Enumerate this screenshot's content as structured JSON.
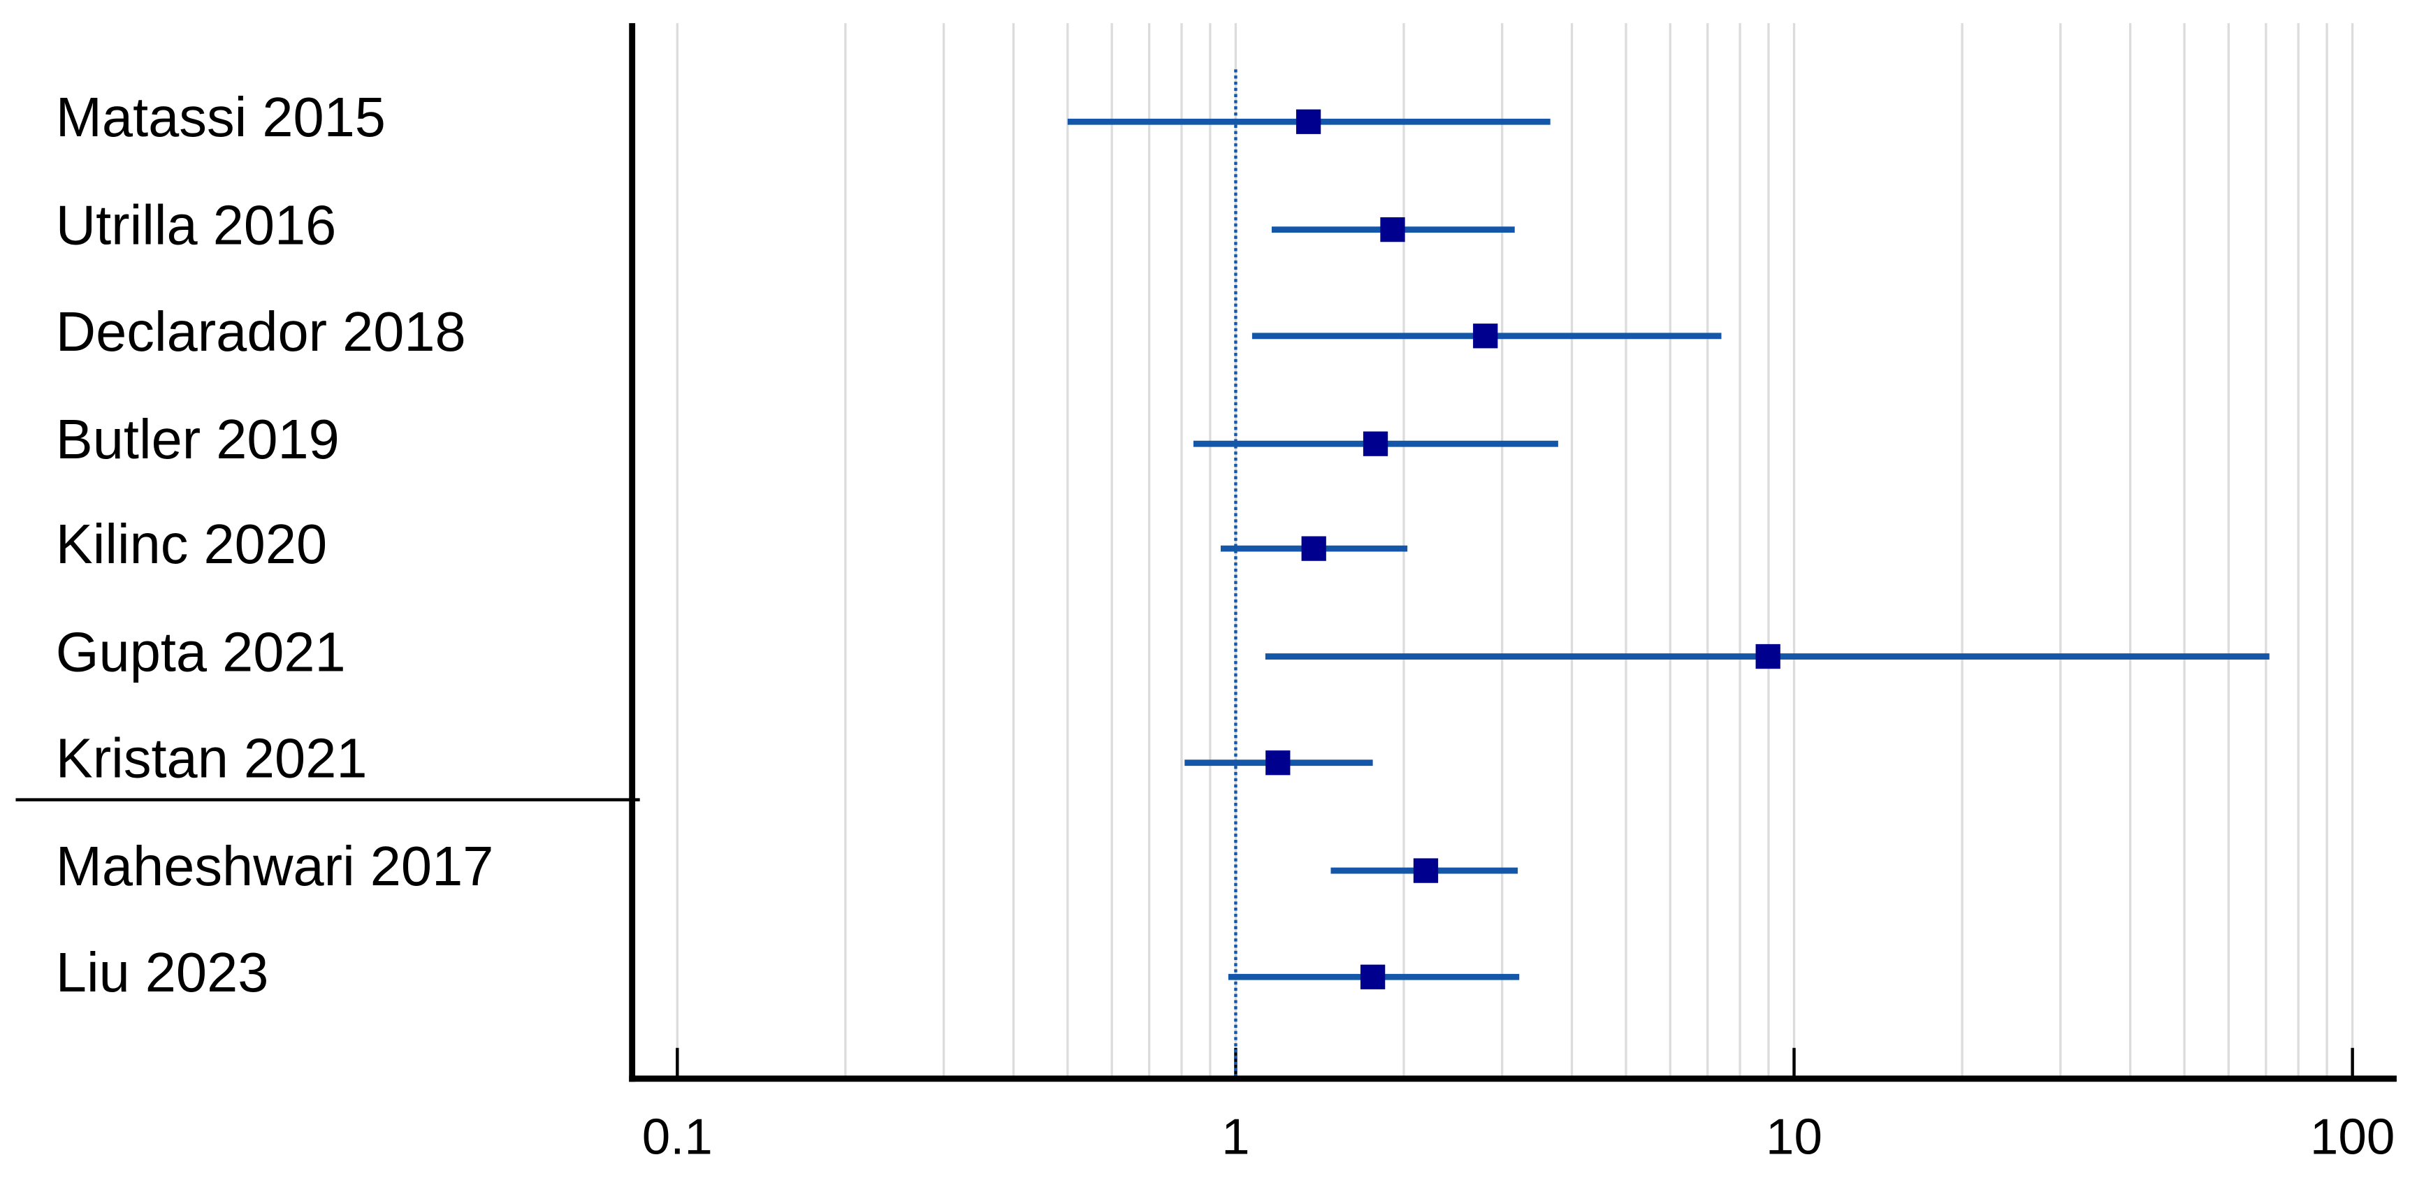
{
  "chart_data": {
    "type": "forest",
    "categories": [
      "Matassi 2015",
      "Utrilla 2016",
      "Declarador 2018",
      "Butler 2019",
      "Kilinc 2020",
      "Gupta 2021",
      "Kristan 2021",
      "Maheshwari 2017",
      "Liu 2023"
    ],
    "values": [
      1.35,
      1.91,
      2.8,
      1.78,
      1.38,
      8.98,
      1.19,
      2.19,
      1.76
    ],
    "ci_lower": [
      0.5,
      1.16,
      1.07,
      0.84,
      0.94,
      1.13,
      0.81,
      1.48,
      0.97
    ],
    "ci_upper": [
      3.66,
      3.16,
      7.41,
      3.78,
      2.03,
      71,
      1.76,
      3.2,
      3.22
    ],
    "xlim": [
      0.083,
      120
    ],
    "xscale": "log",
    "xticks": [
      0.1,
      1,
      10,
      100
    ],
    "minor_xticks": [
      0.2,
      0.3,
      0.4,
      0.5,
      0.6,
      0.7,
      0.8,
      0.9,
      2,
      3,
      4,
      5,
      6,
      7,
      8,
      9,
      20,
      30,
      40,
      50,
      60,
      70,
      80,
      90
    ],
    "reference_line": 1,
    "grid": true,
    "line_color": "#1456a8",
    "marker_color": "#00008f"
  }
}
